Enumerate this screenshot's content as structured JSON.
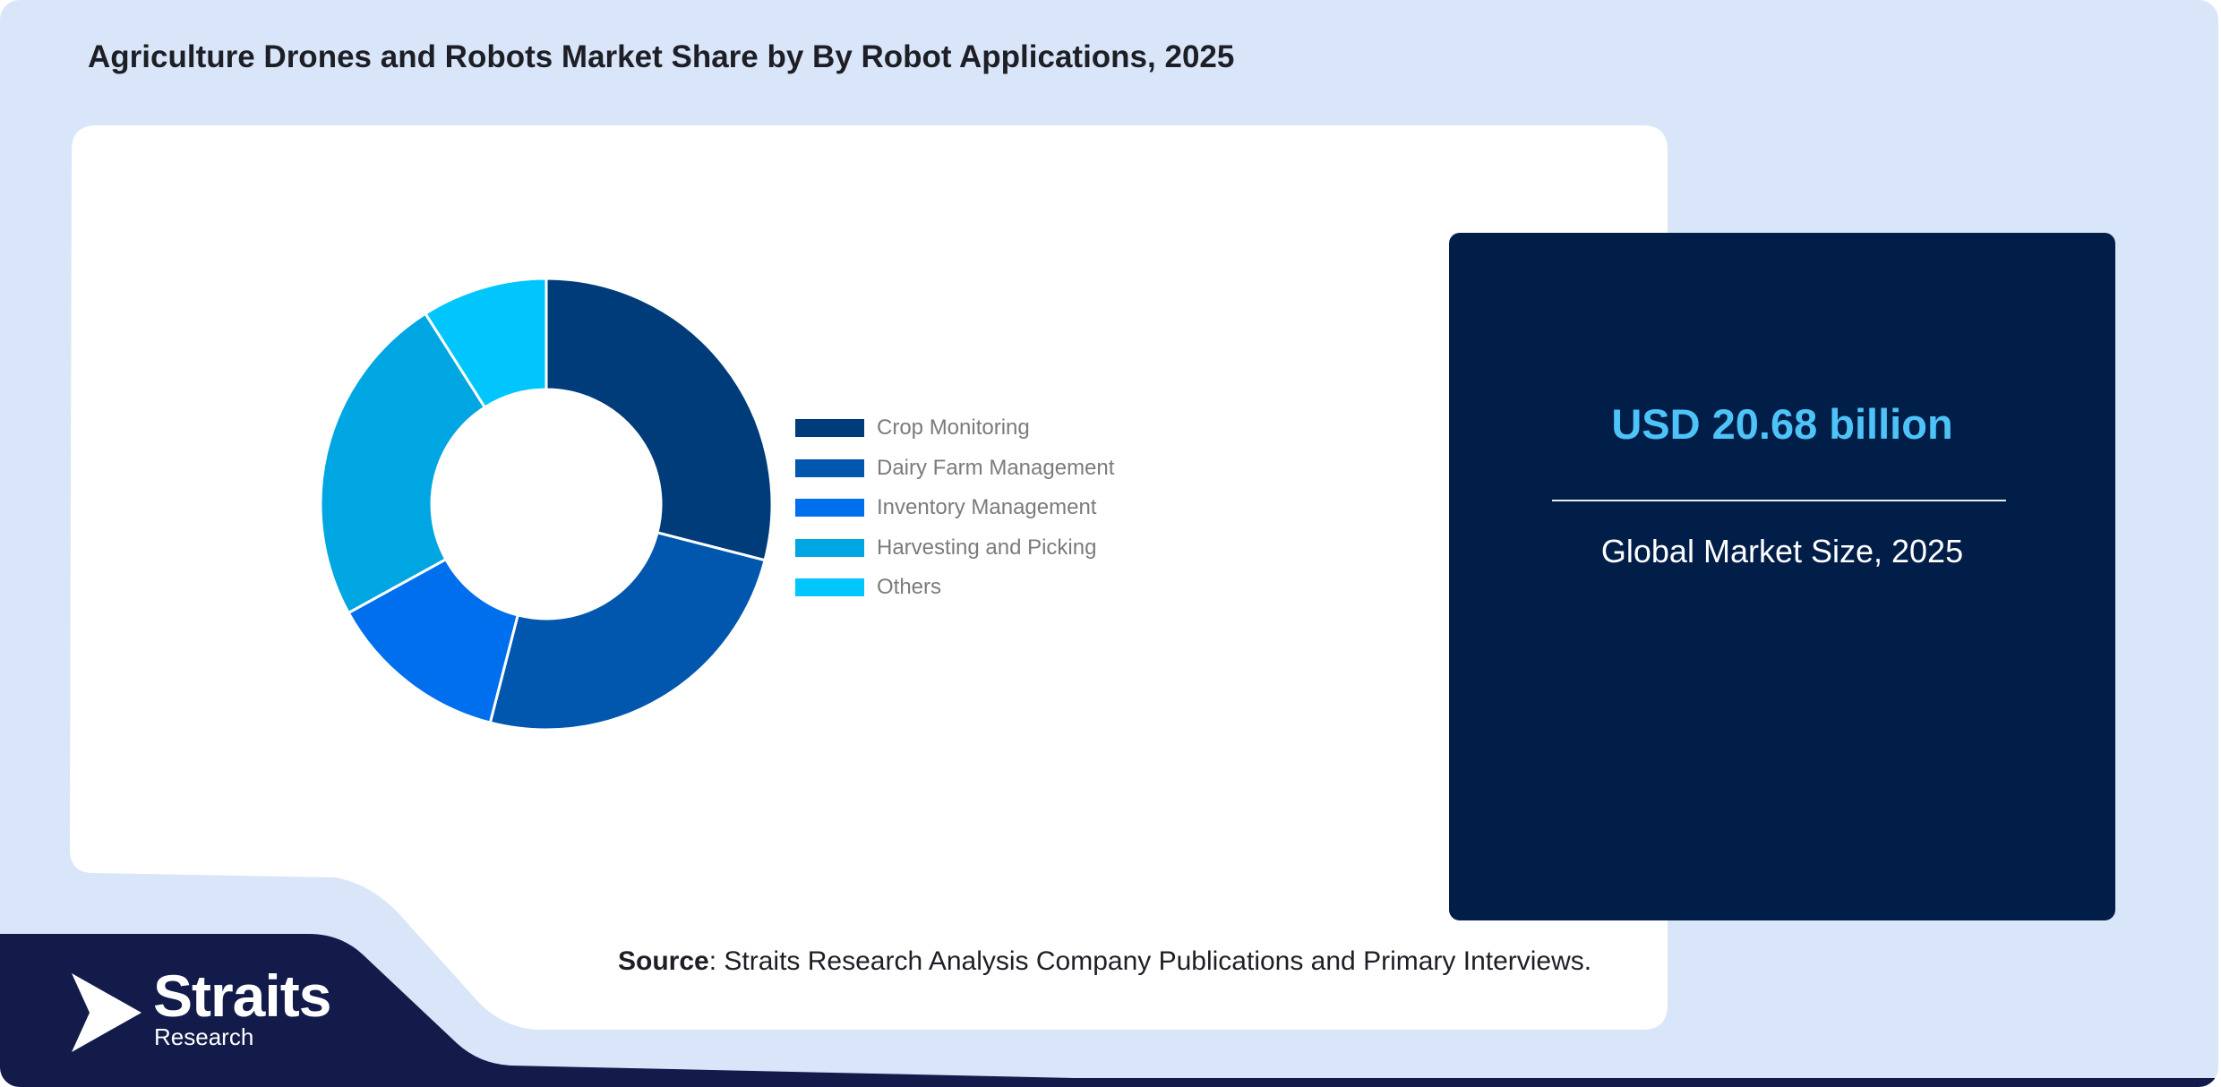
{
  "title": "Agriculture Drones and Robots Market Share by By Robot Applications, 2025",
  "chart_data": {
    "type": "pie",
    "style": "donut",
    "title": "Agriculture Drones and Robots Market Share by By Robot Applications, 2025",
    "legend_position": "right",
    "categories": [
      "Crop Monitoring",
      "Dairy Farm Management",
      "Inventory Management",
      "Harvesting and Picking",
      "Others"
    ],
    "values": [
      29,
      25,
      13,
      24,
      9
    ],
    "colors": [
      "#003c7a",
      "#0057ad",
      "#006fee",
      "#00a6e2",
      "#00c6fe"
    ]
  },
  "stat_card": {
    "value": "USD 20.68 billion",
    "label": "Global Market Size, 2025"
  },
  "source": {
    "label": "Source",
    "text": ": Straits Research Analysis Company Publications and Primary Interviews."
  },
  "logo": {
    "name": "Straits",
    "sub": "Research",
    "icon": "straits-arrow-logo-icon"
  },
  "theme": {
    "background": "#d9e6f9",
    "card_dark": "#011e49",
    "footer_dark": "#121b4a",
    "accent": "#4ec3f7"
  }
}
